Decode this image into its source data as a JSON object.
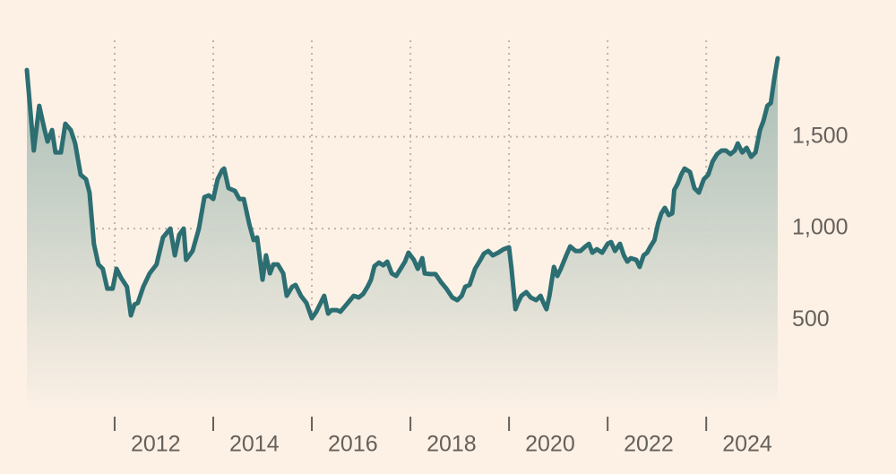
{
  "chart_data": {
    "type": "area",
    "x": [
      2010.22,
      2010.36,
      2010.47,
      2010.58,
      2010.64,
      2010.73,
      2010.8,
      2010.91,
      2011.0,
      2011.11,
      2011.2,
      2011.31,
      2011.42,
      2011.49,
      2011.58,
      2011.67,
      2011.76,
      2011.85,
      2011.96,
      2012.04,
      2012.13,
      2012.25,
      2012.33,
      2012.4,
      2012.47,
      2012.58,
      2012.71,
      2012.85,
      2012.98,
      2013.13,
      2013.22,
      2013.31,
      2013.4,
      2013.45,
      2013.58,
      2013.71,
      2013.82,
      2013.91,
      2014.0,
      2014.09,
      2014.18,
      2014.22,
      2014.31,
      2014.44,
      2014.53,
      2014.62,
      2014.73,
      2014.82,
      2014.89,
      2015.0,
      2015.07,
      2015.15,
      2015.22,
      2015.31,
      2015.42,
      2015.49,
      2015.6,
      2015.67,
      2015.78,
      2015.89,
      2016.0,
      2016.09,
      2016.18,
      2016.25,
      2016.33,
      2016.4,
      2016.51,
      2016.58,
      2016.67,
      2016.76,
      2016.85,
      2016.95,
      2017.04,
      2017.13,
      2017.2,
      2017.27,
      2017.36,
      2017.45,
      2017.53,
      2017.62,
      2017.71,
      2017.8,
      2017.89,
      2017.96,
      2018.07,
      2018.15,
      2018.24,
      2018.29,
      2018.4,
      2018.51,
      2018.62,
      2018.73,
      2018.85,
      2018.95,
      2019.04,
      2019.11,
      2019.2,
      2019.31,
      2019.42,
      2019.49,
      2019.58,
      2019.67,
      2019.78,
      2019.89,
      2020.0,
      2020.05,
      2020.13,
      2020.18,
      2020.25,
      2020.35,
      2020.44,
      2020.55,
      2020.64,
      2020.69,
      2020.76,
      2020.82,
      2020.91,
      2020.98,
      2021.05,
      2021.16,
      2021.24,
      2021.35,
      2021.45,
      2021.55,
      2021.62,
      2021.69,
      2021.78,
      2021.89,
      2022.0,
      2022.07,
      2022.15,
      2022.25,
      2022.33,
      2022.4,
      2022.47,
      2022.58,
      2022.65,
      2022.73,
      2022.8,
      2022.87,
      2022.95,
      2023.02,
      2023.09,
      2023.16,
      2023.24,
      2023.31,
      2023.35,
      2023.42,
      2023.49,
      2023.56,
      2023.67,
      2023.76,
      2023.85,
      2023.95,
      2024.04,
      2024.13,
      2024.22,
      2024.31,
      2024.4,
      2024.49,
      2024.58,
      2024.64,
      2024.73,
      2024.82,
      2024.91,
      2025.0,
      2025.09,
      2025.16,
      2025.24,
      2025.31,
      2025.38,
      2025.45
    ],
    "series": [
      {
        "color": "#2c6e72",
        "values": [
          1864,
          1425,
          1669,
          1537,
          1474,
          1537,
          1415,
          1415,
          1571,
          1537,
          1464,
          1293,
          1269,
          1196,
          917,
          805,
          781,
          673,
          673,
          781,
          732,
          683,
          527,
          586,
          595,
          683,
          756,
          805,
          952,
          1000,
          854,
          966,
          1000,
          830,
          878,
          1000,
          1171,
          1181,
          1161,
          1269,
          1318,
          1327,
          1220,
          1205,
          1161,
          1161,
          1025,
          937,
          952,
          722,
          854,
          756,
          805,
          805,
          756,
          634,
          683,
          693,
          634,
          595,
          512,
          547,
          595,
          634,
          537,
          556,
          556,
          547,
          576,
          605,
          634,
          625,
          644,
          683,
          722,
          795,
          815,
          800,
          820,
          756,
          742,
          781,
          820,
          869,
          830,
          781,
          839,
          756,
          752,
          752,
          708,
          673,
          625,
          610,
          634,
          683,
          693,
          781,
          830,
          864,
          878,
          854,
          869,
          888,
          898,
          781,
          561,
          595,
          634,
          654,
          625,
          610,
          634,
          600,
          561,
          634,
          791,
          742,
          781,
          854,
          903,
          878,
          878,
          903,
          917,
          869,
          888,
          869,
          917,
          927,
          878,
          917,
          854,
          820,
          839,
          830,
          791,
          854,
          869,
          903,
          937,
          1025,
          1083,
          1113,
          1074,
          1083,
          1210,
          1244,
          1293,
          1327,
          1308,
          1220,
          1196,
          1269,
          1293,
          1366,
          1405,
          1425,
          1425,
          1405,
          1425,
          1464,
          1415,
          1440,
          1391,
          1415,
          1537,
          1586,
          1669,
          1684,
          1815,
          1928
        ]
      }
    ],
    "xlim": [
      2010.22,
      2025.45
    ],
    "xticks": [
      2012,
      2014,
      2016,
      2018,
      2020,
      2022,
      2024
    ],
    "ylim": [
      0,
      2050
    ],
    "yticks": [
      500,
      {
        "value": 1000,
        "label": "1,000"
      },
      {
        "value": 1500,
        "label": "1,500"
      }
    ],
    "grid": true
  }
}
